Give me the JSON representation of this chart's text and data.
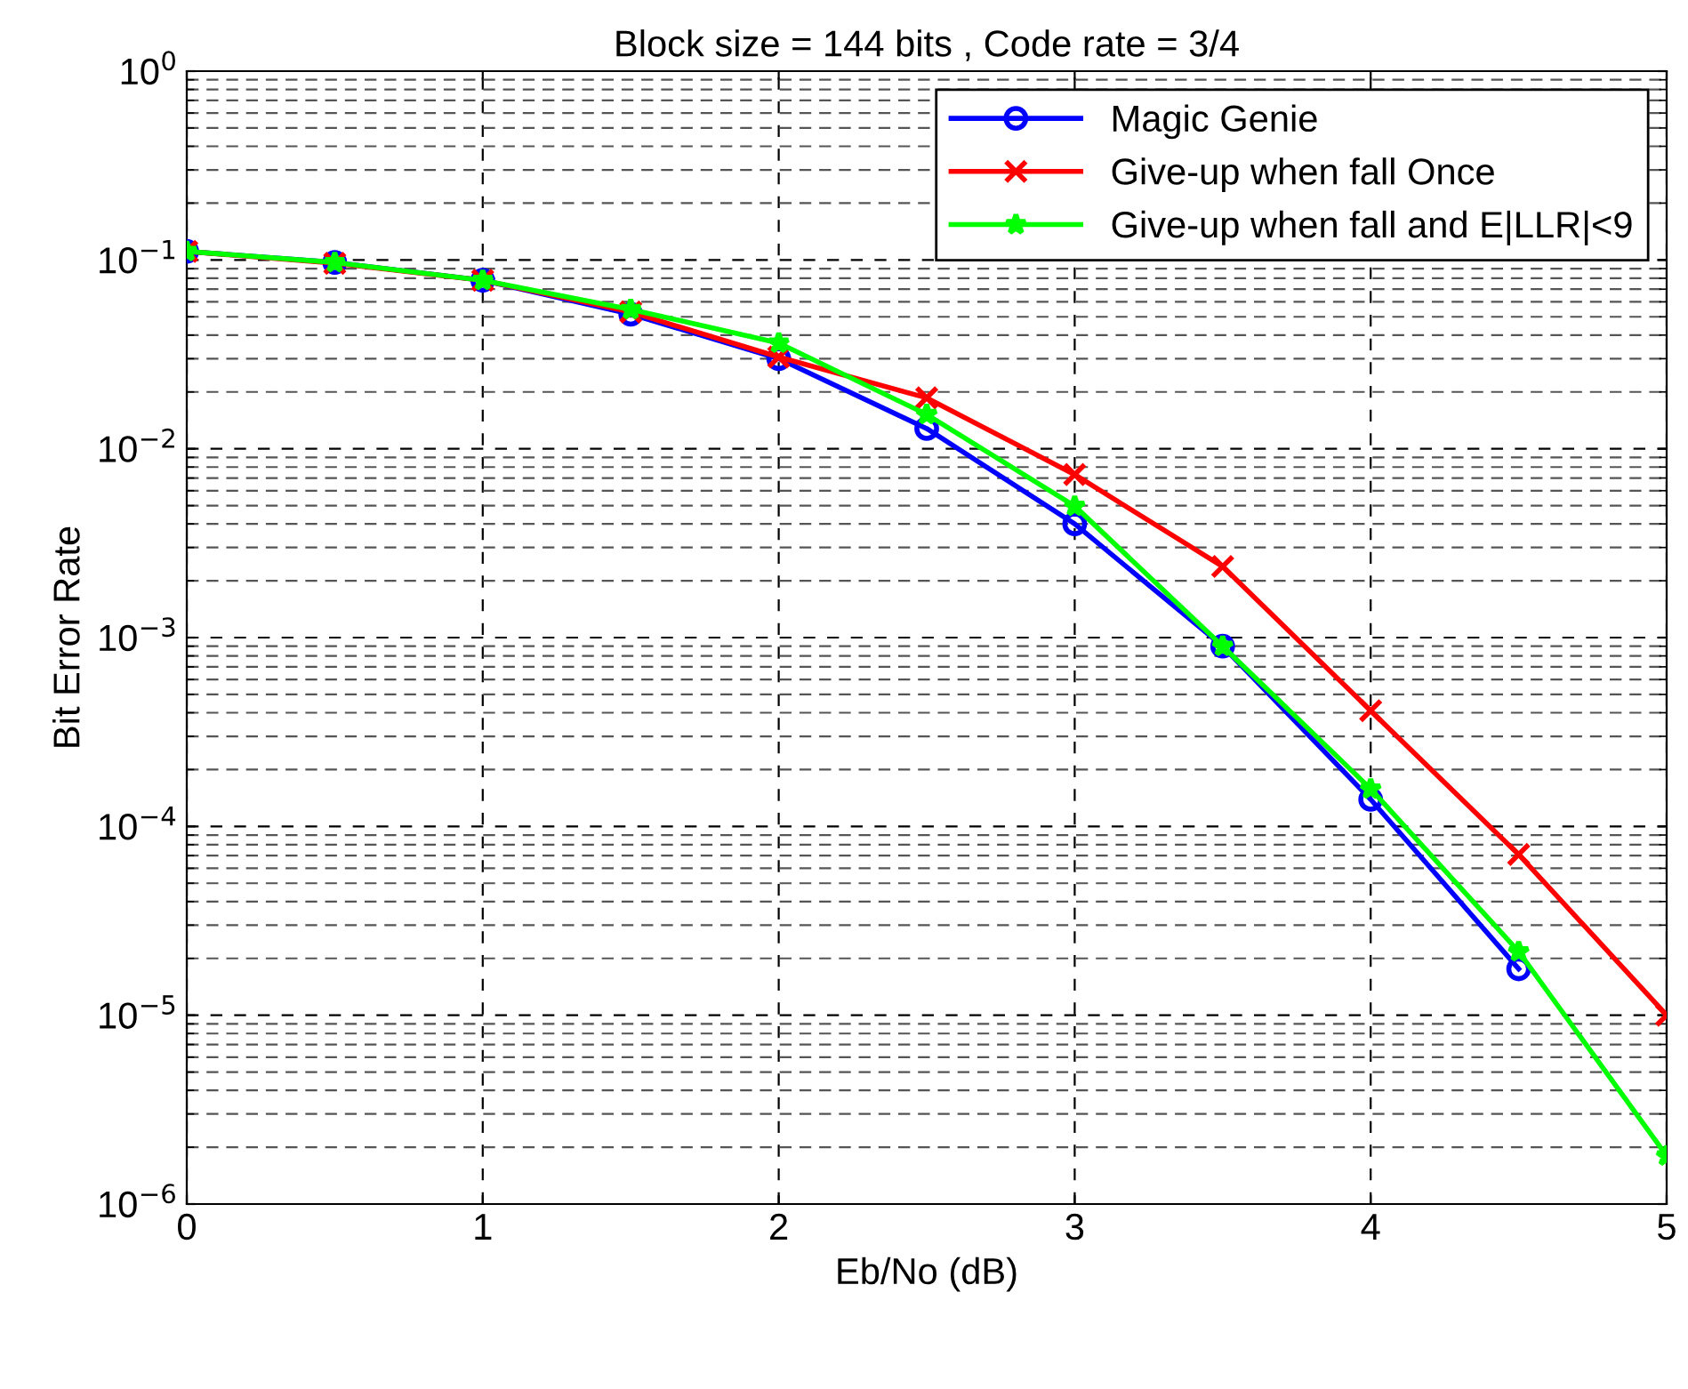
{
  "chart_data": {
    "type": "line",
    "title": "Block size = 144 bits , Code rate = 3/4",
    "xlabel": "Eb/No (dB)",
    "ylabel": "Bit Error Rate",
    "x": [
      0,
      0.5,
      1,
      1.5,
      2,
      2.5,
      3,
      3.5,
      4,
      4.5,
      5
    ],
    "series": [
      {
        "name": "Magic Genie",
        "color": "#0000ff",
        "marker": "circle",
        "values": [
          0.111,
          0.097,
          0.078,
          0.0516,
          0.03,
          0.0128,
          0.004,
          0.0009,
          0.000139,
          1.76e-05,
          null
        ]
      },
      {
        "name": "Give-up when fall Once",
        "color": "#ff0000",
        "marker": "cross",
        "values": [
          0.111,
          0.096,
          0.078,
          0.053,
          0.0306,
          0.0186,
          0.0073,
          0.00238,
          0.00041,
          7.1e-05,
          1e-05
        ]
      },
      {
        "name": "Give-up when fall and E|LLR|<9",
        "color": "#00ff00",
        "marker": "star",
        "values": [
          0.111,
          0.097,
          0.078,
          0.0547,
          0.0363,
          0.0152,
          0.00497,
          0.0009,
          0.000158,
          2.17e-05,
          1.8e-06
        ]
      }
    ],
    "log": "y",
    "xlim": [
      0,
      5
    ],
    "xticks": [
      0,
      1,
      2,
      3,
      4,
      5
    ],
    "ylim": [
      1e-06,
      1
    ],
    "yticks": [
      {
        "value": 1e-06,
        "label": "10$^{−6}$"
      },
      {
        "value": 1e-05,
        "label": "10$^{−5}$"
      },
      {
        "value": 0.0001,
        "label": "10$^{−4}$"
      },
      {
        "value": 0.001,
        "label": "10$^{−3}$"
      },
      {
        "value": 0.01,
        "label": "10$^{−2}$"
      },
      {
        "value": 0.1,
        "label": "10$^{−1}$"
      },
      {
        "value": 1,
        "label": "10$^{0}$"
      }
    ],
    "grid": true,
    "legend": "top right",
    "line_style": "solid"
  }
}
